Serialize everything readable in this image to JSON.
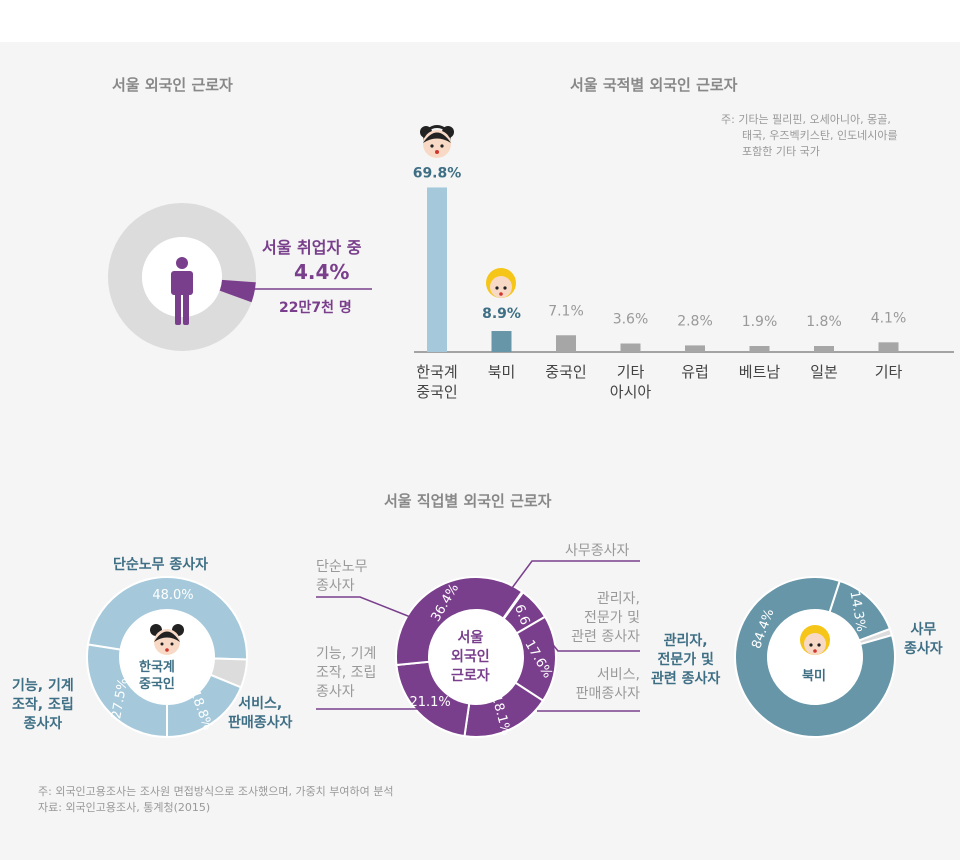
{
  "section1": {
    "title": "서울 외국인 근로자",
    "label_line1": "서울 취업자 중",
    "label_pct": "4.4%",
    "label_count": "22만7천 명"
  },
  "section2": {
    "title": "서울 국적별 외국인 근로자",
    "note_l1": "주: 기타는 필리핀, 오세아니아, 몽골,",
    "note_l2": "태국, 우즈벡키스탄, 인도네시아를",
    "note_l3": "포함한 기타 국가"
  },
  "section3": {
    "title": "서울 직업별 외국인 근로자",
    "left_center_l1": "한국계",
    "left_center_l2": "중국인",
    "mid_center_l1": "서울",
    "mid_center_l2": "외국인",
    "mid_center_l3": "근로자",
    "right_center": "북미",
    "lbl_simple": "단순노무 종사자",
    "lbl_tech_l1": "기능, 기계",
    "lbl_tech_l2": "조작, 조립",
    "lbl_tech_l3": "종사자",
    "lbl_service_l1": "서비스,",
    "lbl_service_l2": "판매종사자",
    "mid_simple_l1": "단순노무",
    "mid_simple_l2": "종사자",
    "mid_office": "사무종사자",
    "mid_mgr_l1": "관리자,",
    "mid_mgr_l2": "전문가 및",
    "mid_mgr_l3": "관련 종사자",
    "mid_service_l1": "서비스,",
    "mid_service_l2": "판매종사자",
    "mid_tech_l1": "기능, 기계",
    "mid_tech_l2": "조작, 조립",
    "mid_tech_l3": "종사자",
    "right_mgr_l1": "관리자,",
    "right_mgr_l2": "전문가 및",
    "right_mgr_l3": "관련 종사자",
    "right_office_l1": "사무",
    "right_office_l2": "종사자"
  },
  "footer": {
    "note": "주: 외국인고용조사는 조사원 면접방식으로 조사했으며, 가중치 부여하여 분석",
    "source": "자료: 외국인고용조사, 통계청(2015)"
  },
  "colors": {
    "purple": "#7a3f8c",
    "light_blue": "#a5c9db",
    "teal": "#6796a8",
    "gray": "#a6a6a6",
    "ring_gray": "#dcdcdc"
  },
  "chart_data": [
    {
      "type": "pie",
      "title": "서울 외국인 근로자",
      "labels": [
        "서울 취업자 중"
      ],
      "values": [
        4.4
      ],
      "count_label": "22만7천 명"
    },
    {
      "type": "bar",
      "title": "서울 국적별 외국인 근로자",
      "categories": [
        "한국계 중국인",
        "북미",
        "중국인",
        "기타 아시아",
        "유럽",
        "베트남",
        "일본",
        "기타"
      ],
      "value_labels": [
        "69.8%",
        "8.9%",
        "7.1%",
        "3.6%",
        "2.8%",
        "1.9%",
        "1.8%",
        "4.1%"
      ],
      "values": [
        69.8,
        8.9,
        7.1,
        3.6,
        2.8,
        1.9,
        1.8,
        4.1
      ],
      "ylim": [
        0,
        70
      ]
    },
    {
      "type": "pie",
      "name": "한국계 중국인",
      "labels": [
        "단순노무 종사자",
        "서비스, 판매종사자",
        "기능, 기계 조작, 조립 종사자"
      ],
      "values": [
        48.0,
        18.8,
        27.5
      ],
      "value_labels": [
        "48.0%",
        "18.8%",
        "27.5%"
      ]
    },
    {
      "type": "pie",
      "name": "서울 외국인 근로자",
      "labels": [
        "사무종사자",
        "관리자, 전문가 및 관련 종사자",
        "서비스, 판매종사자",
        "기능, 기계 조작, 조립 종사자",
        "단순노무 종사자"
      ],
      "values": [
        6.6,
        17.6,
        18.1,
        21.1,
        36.4
      ],
      "value_labels": [
        "6.6",
        "17.6%",
        "18.1%",
        "21.1%",
        "36.4%"
      ]
    },
    {
      "type": "pie",
      "name": "북미",
      "labels": [
        "사무 종사자",
        "관리자, 전문가 및 관련 종사자"
      ],
      "values": [
        14.3,
        84.4
      ],
      "value_labels": [
        "14.3%",
        "84.4%"
      ]
    }
  ]
}
